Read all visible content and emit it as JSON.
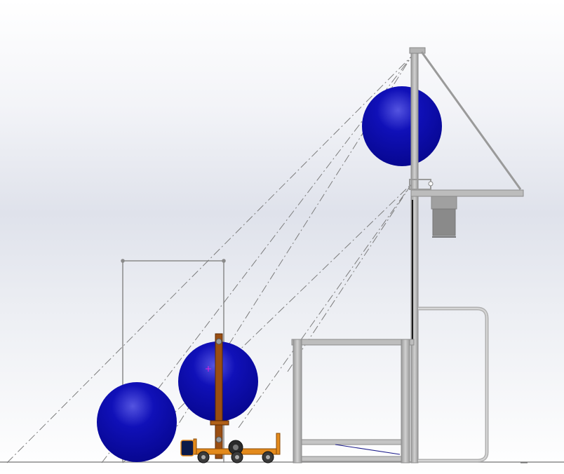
{
  "viewport": {
    "background_top": "#ffffff",
    "background_mid": "#dfe2eb",
    "background_bottom": "#ffffff"
  },
  "colors": {
    "ball_blue": "#0a0aa8",
    "ball_highlight": "#4a4ad8",
    "frame_gray": "#a8a8a8",
    "frame_dark_gray": "#8c8c8c",
    "robot_brown": "#9a4e12",
    "robot_orange": "#e38a1c",
    "sketch_line": "#7d7d7d",
    "origin_marker": "#e020e0"
  },
  "parts": {
    "balls": [
      {
        "name": "ball-on-floor"
      },
      {
        "name": "ball-on-robot"
      },
      {
        "name": "ball-in-goal"
      }
    ],
    "goal_structure": {
      "name": "goal-tower"
    },
    "robot": {
      "name": "robot-lift"
    },
    "sketch_rectangle": {
      "name": "reference-rectangle"
    },
    "trajectory_lines": {
      "name": "trajectory-centerlines",
      "count": 6
    }
  }
}
